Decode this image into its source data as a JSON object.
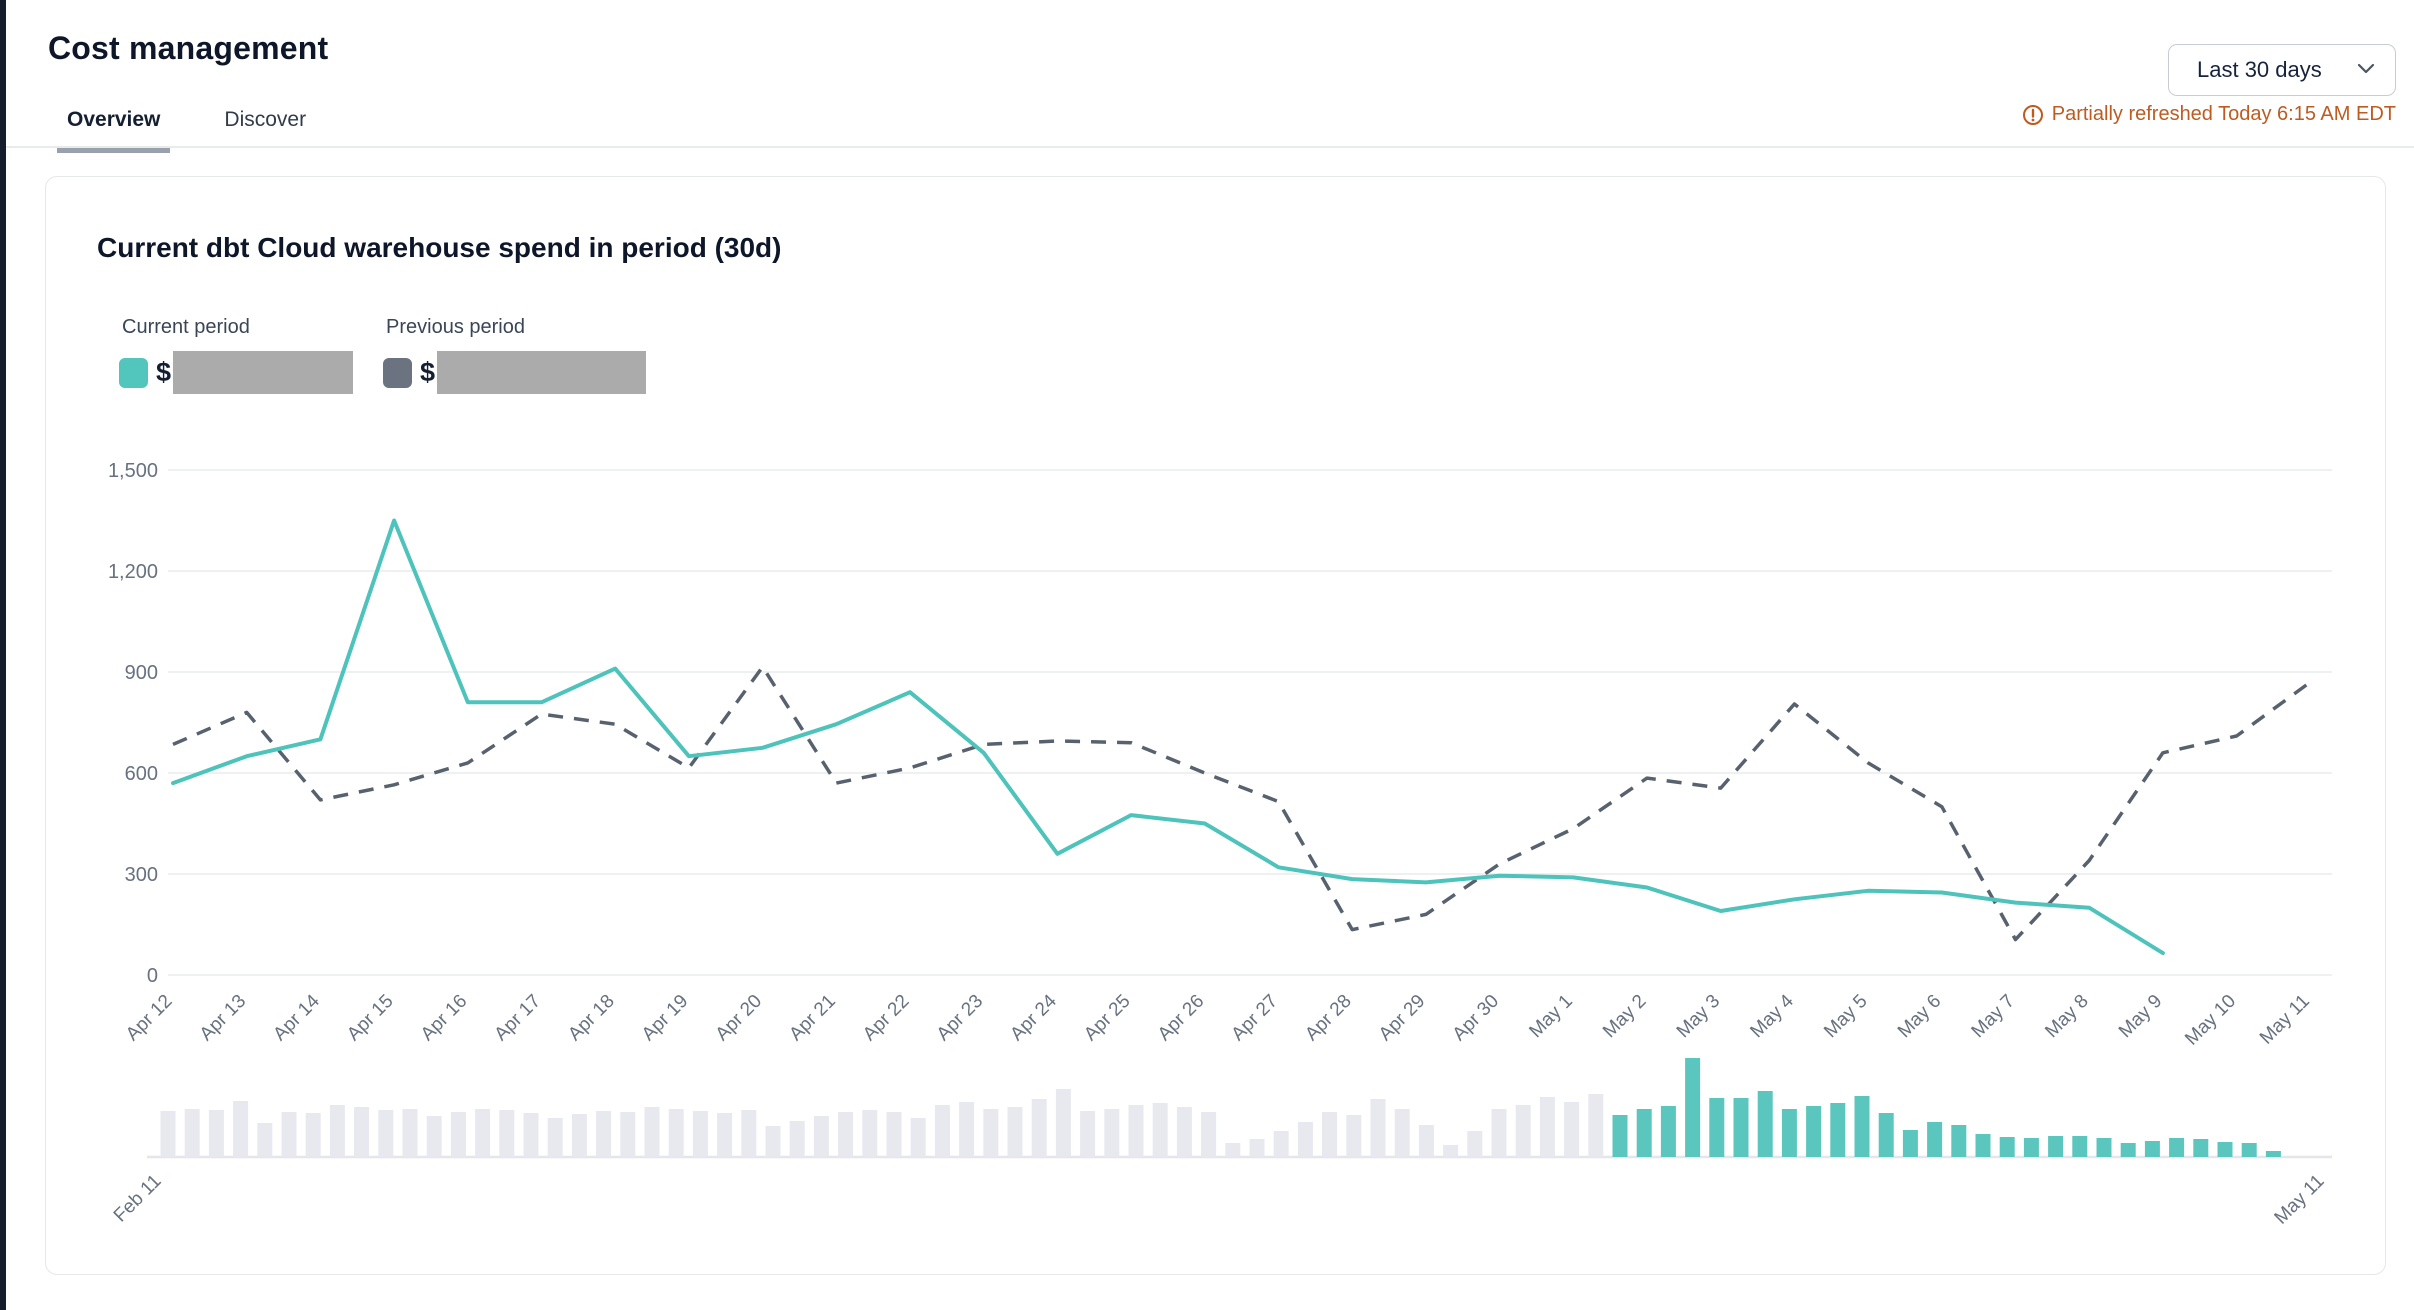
{
  "header": {
    "title": "Cost management",
    "tabs": [
      {
        "label": "Overview",
        "active": true
      },
      {
        "label": "Discover",
        "active": false
      }
    ],
    "range_selector": {
      "value": "Last 30 days"
    },
    "refresh_status": {
      "text": "Partially refreshed Today 6:15 AM EDT",
      "color": "#bd5b21"
    }
  },
  "card": {
    "title": "Current dbt Cloud warehouse spend in period (30d)",
    "legend": [
      {
        "label": "Current period",
        "swatch_color": "#52c5bd",
        "prefix": "$",
        "value_masked": true
      },
      {
        "label": "Previous period",
        "swatch_color": "#6b7280",
        "prefix": "$",
        "value_masked": true
      }
    ]
  },
  "chart_data": [
    {
      "type": "line",
      "title": "Current dbt Cloud warehouse spend in period (30d)",
      "xlabel": "",
      "ylabel": "",
      "ylim": [
        0,
        1500
      ],
      "grid": true,
      "legend_position": "top-left",
      "y_ticks": [
        {
          "v": 0,
          "label": "0"
        },
        {
          "v": 300,
          "label": "300"
        },
        {
          "v": 600,
          "label": "600"
        },
        {
          "v": 900,
          "label": "900"
        },
        {
          "v": 1200,
          "label": "1,200"
        },
        {
          "v": 1500,
          "label": "1,500"
        }
      ],
      "categories": [
        "Apr 12",
        "Apr 13",
        "Apr 14",
        "Apr 15",
        "Apr 16",
        "Apr 17",
        "Apr 18",
        "Apr 19",
        "Apr 20",
        "Apr 21",
        "Apr 22",
        "Apr 23",
        "Apr 24",
        "Apr 25",
        "Apr 26",
        "Apr 27",
        "Apr 28",
        "Apr 29",
        "Apr 30",
        "May 1",
        "May 2",
        "May 3",
        "May 4",
        "May 5",
        "May 6",
        "May 7",
        "May 8",
        "May 9",
        "May 10",
        "May 11"
      ],
      "series": [
        {
          "name": "Current period",
          "style": "solid",
          "color": "#4ec3bb",
          "values": [
            570,
            650,
            700,
            1350,
            810,
            810,
            910,
            650,
            675,
            745,
            840,
            660,
            360,
            475,
            450,
            320,
            285,
            275,
            295,
            290,
            260,
            190,
            225,
            250,
            245,
            215,
            200,
            65,
            null,
            null
          ]
        },
        {
          "name": "Previous period",
          "style": "dashed",
          "color": "#58626f",
          "values": [
            685,
            780,
            520,
            565,
            630,
            775,
            745,
            615,
            915,
            570,
            615,
            685,
            695,
            690,
            600,
            515,
            135,
            180,
            330,
            435,
            585,
            555,
            805,
            630,
            500,
            105,
            340,
            660,
            710,
            870
          ]
        }
      ]
    },
    {
      "type": "bar",
      "role": "navigator-brush",
      "x_start_label": "Feb 11",
      "x_end_label": "May 11",
      "y_axis_hidden": true,
      "unselected_color": "#e7e9ee",
      "selected_color": "#5bc6be",
      "selected_from_index": 60,
      "values": [
        46,
        48,
        47,
        56,
        34,
        45,
        44,
        52,
        50,
        47,
        48,
        41,
        45,
        48,
        47,
        44,
        39,
        43,
        46,
        45,
        50,
        48,
        46,
        44,
        47,
        31,
        36,
        41,
        45,
        47,
        45,
        39,
        52,
        55,
        48,
        50,
        58,
        68,
        46,
        48,
        52,
        54,
        50,
        45,
        14,
        18,
        26,
        35,
        45,
        42,
        58,
        48,
        32,
        12,
        26,
        48,
        52,
        60,
        55,
        63,
        42,
        48,
        51,
        99,
        59,
        59,
        66,
        48,
        51,
        54,
        61,
        44,
        27,
        35,
        32,
        23,
        20,
        19,
        21,
        21,
        19,
        14,
        16,
        19,
        18,
        15,
        14,
        6,
        null,
        null
      ]
    }
  ]
}
